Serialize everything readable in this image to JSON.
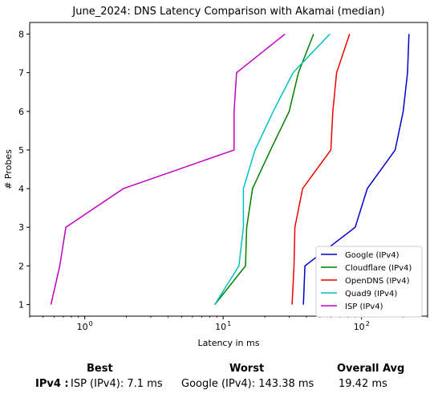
{
  "chart_data": {
    "type": "line",
    "title": "June_2024: DNS Latency Comparison with Akamai (median)",
    "xlabel": "Latency in ms",
    "ylabel": "# Probes",
    "xscale": "log",
    "xlim": [
      0.4,
      300
    ],
    "ylim": [
      0.7,
      8.3
    ],
    "xticks": [
      {
        "value": 1,
        "label": "10"
      },
      {
        "value": 10,
        "label": "10"
      },
      {
        "value": 100,
        "label": "10"
      }
    ],
    "xtick_exponents": [
      "0",
      "1",
      "2"
    ],
    "yticks": [
      1,
      2,
      3,
      4,
      5,
      6,
      7,
      8
    ],
    "ytick_labels": [
      "1",
      "2",
      "3",
      "4",
      "5",
      "6",
      "7",
      "8"
    ],
    "legend_position": "lower-right",
    "series": [
      {
        "name": "Google (IPv4)",
        "color": "#0000cc",
        "x": [
          38,
          39,
          90,
          110,
          175,
          200,
          215,
          220
        ],
        "y": [
          1,
          2,
          3,
          4,
          5,
          6,
          7,
          8
        ]
      },
      {
        "name": "Cloudflare (IPv4)",
        "color": "#008000",
        "x": [
          8.7,
          14.5,
          14.8,
          16.3,
          22,
          30,
          35,
          45
        ],
        "y": [
          1,
          2,
          3,
          4,
          5,
          6,
          7,
          8
        ]
      },
      {
        "name": "OpenDNS (IPv4)",
        "color": "#ee0000",
        "x": [
          31.5,
          32.5,
          33,
          37.5,
          60,
          62,
          66,
          82
        ],
        "y": [
          1,
          2,
          3,
          4,
          5,
          6,
          7,
          8
        ]
      },
      {
        "name": "Quad9 (IPv4)",
        "color": "#00bfbf",
        "x": [
          8.7,
          13,
          14,
          14,
          17,
          23,
          32,
          59
        ],
        "y": [
          1,
          2,
          3,
          4,
          5,
          6,
          7,
          8
        ]
      },
      {
        "name": "ISP (IPv4)",
        "color": "#bf00bf",
        "x": [
          0.57,
          0.66,
          0.73,
          1.9,
          12,
          12,
          12.5,
          28
        ],
        "y": [
          1,
          2,
          3,
          4,
          5,
          6,
          7,
          8
        ]
      }
    ]
  },
  "summary": {
    "best_header": "Best",
    "worst_header": "Worst",
    "avg_header": "Overall Avg",
    "row_label": "IPv4 :",
    "best_value": "ISP (IPv4): 7.1 ms",
    "worst_value": "Google (IPv4): 143.38 ms",
    "avg_value": "19.42 ms"
  }
}
